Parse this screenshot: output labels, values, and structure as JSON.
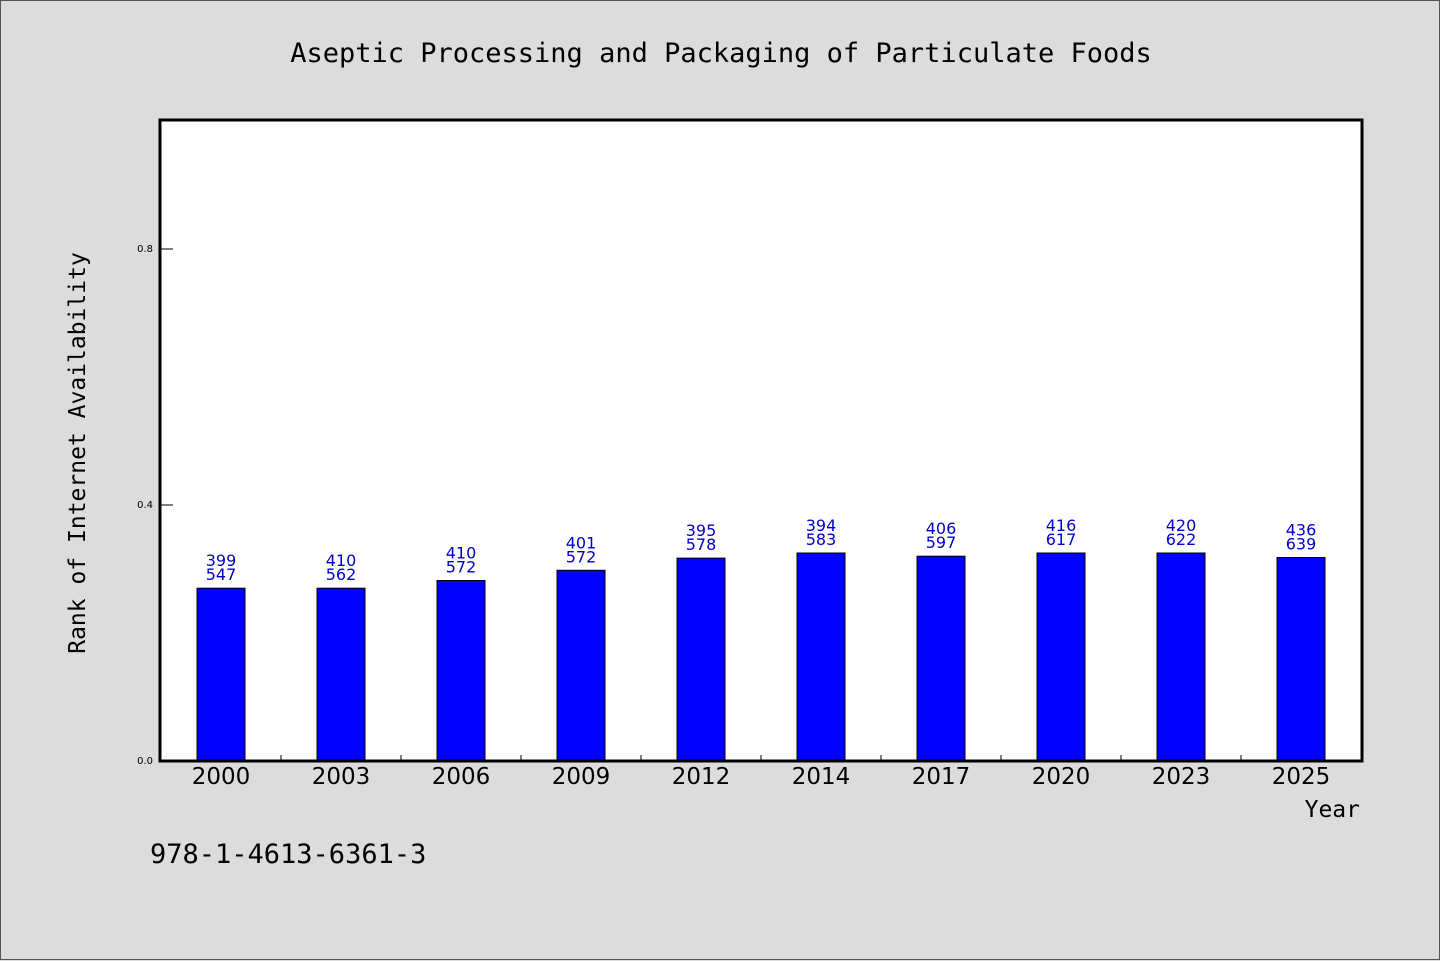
{
  "chart_data": {
    "type": "bar",
    "title": "Aseptic Processing and Packaging of Particulate Foods",
    "xlabel": "Year",
    "ylabel": "Rank of Internet Availability",
    "categories": [
      "2000",
      "2003",
      "2006",
      "2009",
      "2012",
      "2014",
      "2017",
      "2020",
      "2023",
      "2025"
    ],
    "values": [
      0.27,
      0.27,
      0.282,
      0.298,
      0.317,
      0.325,
      0.32,
      0.325,
      0.325,
      0.318
    ],
    "bar_labels_top": [
      "399",
      "410",
      "410",
      "401",
      "395",
      "394",
      "406",
      "416",
      "420",
      "436"
    ],
    "bar_labels_bottom": [
      "547",
      "562",
      "572",
      "572",
      "578",
      "583",
      "597",
      "617",
      "622",
      "639"
    ],
    "ylim": [
      0,
      1.0
    ],
    "yticks": [
      0.0,
      0.4,
      0.8
    ],
    "ytick_labels": [
      "0.0",
      "0.4",
      "0.8"
    ],
    "grid": false,
    "bar_color": "#0000ff",
    "label_color": "#0000cc"
  },
  "footer": {
    "isbn": "978-1-4613-6361-3"
  }
}
